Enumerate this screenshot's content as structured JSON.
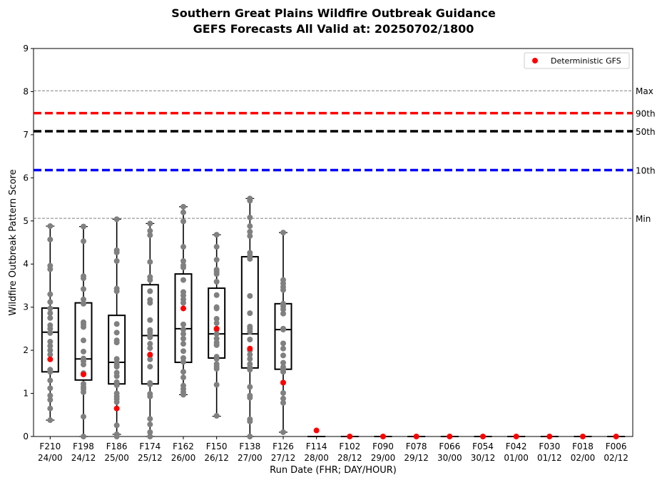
{
  "title_line1": "Southern Great Plains Wildfire Outbreak Guidance",
  "title_line2": "GEFS Forecasts All Valid at: 20250702/1800",
  "chart_data": {
    "type": "box",
    "xlabel": "Run Date (FHR; DAY/HOUR)",
    "ylabel": "Wildfire Outbreak Pattern Score",
    "ylim": [
      0,
      9
    ],
    "yticks": [
      "0",
      "1",
      "2",
      "3",
      "4",
      "5",
      "6",
      "7",
      "8",
      "9"
    ],
    "categories": [
      {
        "fhr": "F210",
        "date": "24/00"
      },
      {
        "fhr": "F198",
        "date": "24/12"
      },
      {
        "fhr": "F186",
        "date": "25/00"
      },
      {
        "fhr": "F174",
        "date": "25/12"
      },
      {
        "fhr": "F162",
        "date": "26/00"
      },
      {
        "fhr": "F150",
        "date": "26/12"
      },
      {
        "fhr": "F138",
        "date": "27/00"
      },
      {
        "fhr": "F126",
        "date": "27/12"
      },
      {
        "fhr": "F114",
        "date": "28/00"
      },
      {
        "fhr": "F102",
        "date": "28/12"
      },
      {
        "fhr": "F090",
        "date": "29/00"
      },
      {
        "fhr": "F078",
        "date": "29/12"
      },
      {
        "fhr": "F066",
        "date": "30/00"
      },
      {
        "fhr": "F054",
        "date": "30/12"
      },
      {
        "fhr": "F042",
        "date": "01/00"
      },
      {
        "fhr": "F030",
        "date": "01/12"
      },
      {
        "fhr": "F018",
        "date": "02/00"
      },
      {
        "fhr": "F006",
        "date": "02/12"
      }
    ],
    "boxes": [
      {
        "whislo": 0.38,
        "q1": 1.5,
        "med": 2.42,
        "q3": 2.98,
        "whishi": 4.88
      },
      {
        "whislo": 0.0,
        "q1": 1.31,
        "med": 1.8,
        "q3": 3.1,
        "whishi": 4.87
      },
      {
        "whislo": 0.05,
        "q1": 1.22,
        "med": 1.72,
        "q3": 2.81,
        "whishi": 5.04
      },
      {
        "whislo": 0.0,
        "q1": 1.22,
        "med": 2.34,
        "q3": 3.52,
        "whishi": 4.94
      },
      {
        "whislo": 0.97,
        "q1": 1.72,
        "med": 2.5,
        "q3": 3.77,
        "whishi": 5.33
      },
      {
        "whislo": 0.47,
        "q1": 1.82,
        "med": 2.38,
        "q3": 3.44,
        "whishi": 4.68
      },
      {
        "whislo": 0.0,
        "q1": 1.59,
        "med": 2.38,
        "q3": 4.17,
        "whishi": 5.52
      },
      {
        "whislo": 0.1,
        "q1": 1.56,
        "med": 2.48,
        "q3": 3.08,
        "whishi": 4.73
      },
      {
        "whislo": 0,
        "q1": 0,
        "med": 0,
        "q3": 0,
        "whishi": 0
      },
      {
        "whislo": 0,
        "q1": 0,
        "med": 0,
        "q3": 0,
        "whishi": 0
      },
      {
        "whislo": 0,
        "q1": 0,
        "med": 0,
        "q3": 0,
        "whishi": 0
      },
      {
        "whislo": 0,
        "q1": 0,
        "med": 0,
        "q3": 0,
        "whishi": 0
      },
      {
        "whislo": 0,
        "q1": 0,
        "med": 0,
        "q3": 0,
        "whishi": 0
      },
      {
        "whislo": 0,
        "q1": 0,
        "med": 0,
        "q3": 0,
        "whishi": 0
      },
      {
        "whislo": 0,
        "q1": 0,
        "med": 0,
        "q3": 0,
        "whishi": 0
      },
      {
        "whislo": 0,
        "q1": 0,
        "med": 0,
        "q3": 0,
        "whishi": 0
      },
      {
        "whislo": 0,
        "q1": 0,
        "med": 0,
        "q3": 0,
        "whishi": 0
      },
      {
        "whislo": 0,
        "q1": 0,
        "med": 0,
        "q3": 0,
        "whishi": 0
      }
    ],
    "members": [
      [
        4.88,
        4.57,
        3.96,
        3.88,
        3.3,
        3.12,
        2.97,
        2.86,
        2.75,
        2.58,
        2.5,
        2.4,
        2.2,
        2.1,
        2.0,
        1.9,
        1.55,
        1.5,
        1.3,
        1.12,
        0.95,
        0.85,
        0.65,
        0.38
      ],
      [
        4.87,
        4.53,
        3.72,
        3.67,
        3.42,
        3.18,
        3.08,
        2.65,
        2.6,
        2.54,
        2.23,
        1.97,
        1.81,
        1.75,
        1.67,
        1.47,
        1.22,
        1.15,
        1.1,
        1.03,
        0.46,
        0.0
      ],
      [
        5.04,
        4.32,
        4.27,
        4.07,
        3.43,
        3.37,
        2.61,
        2.41,
        2.23,
        2.18,
        1.8,
        1.72,
        1.67,
        1.62,
        1.48,
        1.4,
        1.26,
        1.19,
        1.0,
        0.93,
        0.87,
        0.8,
        0.26,
        0.05,
        0.0
      ],
      [
        4.94,
        4.77,
        4.67,
        4.05,
        3.7,
        3.63,
        3.37,
        3.17,
        3.1,
        2.7,
        2.47,
        2.42,
        2.35,
        2.3,
        2.15,
        2.05,
        1.88,
        1.79,
        1.62,
        1.24,
        1.21,
        0.99,
        0.93,
        0.41,
        0.28,
        0.1,
        0.0
      ],
      [
        5.33,
        5.2,
        4.99,
        4.4,
        4.07,
        3.97,
        3.92,
        3.63,
        3.35,
        3.27,
        3.18,
        3.1,
        2.6,
        2.48,
        2.38,
        2.27,
        2.15,
        1.98,
        1.82,
        1.73,
        1.5,
        1.37,
        1.18,
        1.1,
        1.03,
        0.97
      ],
      [
        4.68,
        4.4,
        4.1,
        3.87,
        3.82,
        3.77,
        3.59,
        3.28,
        3.0,
        2.97,
        2.73,
        2.63,
        2.48,
        2.38,
        2.27,
        2.18,
        2.12,
        1.85,
        1.8,
        1.68,
        1.62,
        1.57,
        1.2,
        0.48
      ],
      [
        5.52,
        5.47,
        5.08,
        4.88,
        4.75,
        4.65,
        4.26,
        4.19,
        4.12,
        3.26,
        2.86,
        2.55,
        2.5,
        2.43,
        2.25,
        2.0,
        1.9,
        1.8,
        1.68,
        1.6,
        1.55,
        1.15,
        0.95,
        0.9,
        0.4,
        0.35,
        0.0
      ],
      [
        4.73,
        3.63,
        3.55,
        3.47,
        3.4,
        3.08,
        3.02,
        2.95,
        2.85,
        2.5,
        2.48,
        2.16,
        2.04,
        1.88,
        1.71,
        1.61,
        1.55,
        1.5,
        1.25,
        1.01,
        0.88,
        0.78,
        0.1
      ],
      [],
      [],
      [],
      [],
      [],
      [],
      [],
      [],
      [],
      []
    ],
    "deterministic": [
      1.79,
      1.44,
      0.65,
      1.9,
      2.97,
      2.5,
      2.04,
      1.25,
      0.14,
      0,
      0,
      0,
      0,
      0,
      0,
      0,
      0,
      0
    ],
    "thresholds": [
      {
        "label": "Max",
        "value": 8.02,
        "color": "#808080",
        "style": "dashed-thin"
      },
      {
        "label": "90th",
        "value": 7.5,
        "color": "#ff0000",
        "style": "dashed-thick"
      },
      {
        "label": "50th",
        "value": 7.08,
        "color": "#000000",
        "style": "dashed-thick"
      },
      {
        "label": "10th",
        "value": 6.18,
        "color": "#0000ff",
        "style": "dashed-thick"
      },
      {
        "label": "Min",
        "value": 5.06,
        "color": "#808080",
        "style": "dashed-thin"
      }
    ],
    "legend": {
      "label": "Deterministic GFS",
      "placement": "upper-right",
      "marker_color": "#ff0000"
    },
    "member_color": "#808080",
    "deterministic_color": "#ff0000",
    "grid": false
  }
}
